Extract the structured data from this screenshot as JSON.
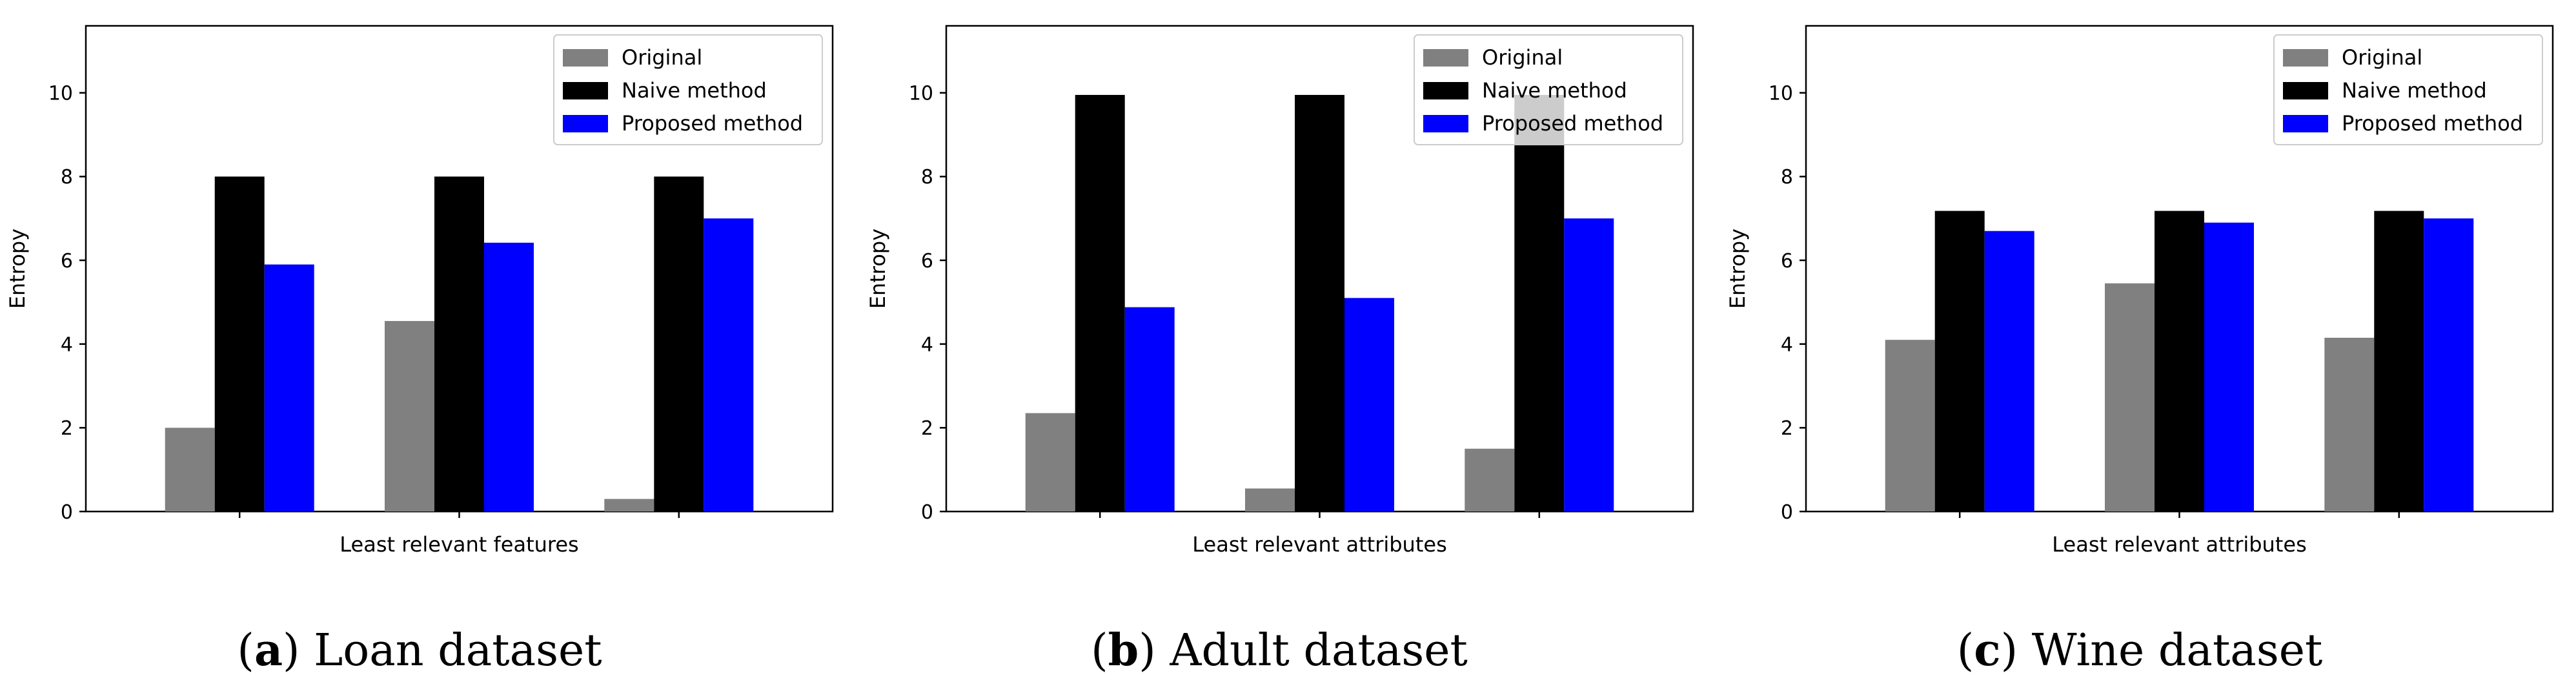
{
  "colors": {
    "original": "#808080",
    "naive": "#000000",
    "proposed": "#0000ff",
    "axis": "#000000",
    "background": "#ffffff"
  },
  "chart_data": [
    {
      "type": "bar",
      "label": "a",
      "caption": "Loan dataset",
      "xlabel": "Least relevant features",
      "ylabel": "Entropy",
      "ylim": [
        0,
        11.6
      ],
      "yticks": [
        0,
        2,
        4,
        6,
        8,
        10
      ],
      "categories": [
        "",
        "",
        ""
      ],
      "legend_position": "top-right",
      "series": [
        {
          "name": "Original",
          "color_key": "original",
          "values": [
            2.0,
            4.55,
            0.3
          ]
        },
        {
          "name": "Naive method",
          "color_key": "naive",
          "values": [
            8.0,
            8.0,
            8.0
          ]
        },
        {
          "name": "Proposed method",
          "color_key": "proposed",
          "values": [
            5.9,
            6.42,
            7.0
          ]
        }
      ]
    },
    {
      "type": "bar",
      "label": "b",
      "caption": "Adult dataset",
      "xlabel": "Least relevant attributes",
      "ylabel": "Entropy",
      "ylim": [
        0,
        11.6
      ],
      "yticks": [
        0,
        2,
        4,
        6,
        8,
        10
      ],
      "categories": [
        "",
        "",
        ""
      ],
      "legend_position": "top-right",
      "series": [
        {
          "name": "Original",
          "color_key": "original",
          "values": [
            2.35,
            0.55,
            1.5
          ]
        },
        {
          "name": "Naive method",
          "color_key": "naive",
          "values": [
            9.95,
            9.95,
            9.95
          ]
        },
        {
          "name": "Proposed method",
          "color_key": "proposed",
          "values": [
            4.88,
            5.1,
            7.0
          ]
        }
      ]
    },
    {
      "type": "bar",
      "label": "c",
      "caption": "Wine dataset",
      "xlabel": "Least relevant attributes",
      "ylabel": "Entropy",
      "ylim": [
        0,
        11.6
      ],
      "yticks": [
        0,
        2,
        4,
        6,
        8,
        10
      ],
      "categories": [
        "",
        "",
        ""
      ],
      "legend_position": "top-right",
      "series": [
        {
          "name": "Original",
          "color_key": "original",
          "values": [
            4.1,
            5.45,
            4.15
          ]
        },
        {
          "name": "Naive method",
          "color_key": "naive",
          "values": [
            7.18,
            7.18,
            7.18
          ]
        },
        {
          "name": "Proposed method",
          "color_key": "proposed",
          "values": [
            6.7,
            6.9,
            7.0
          ]
        }
      ]
    }
  ]
}
